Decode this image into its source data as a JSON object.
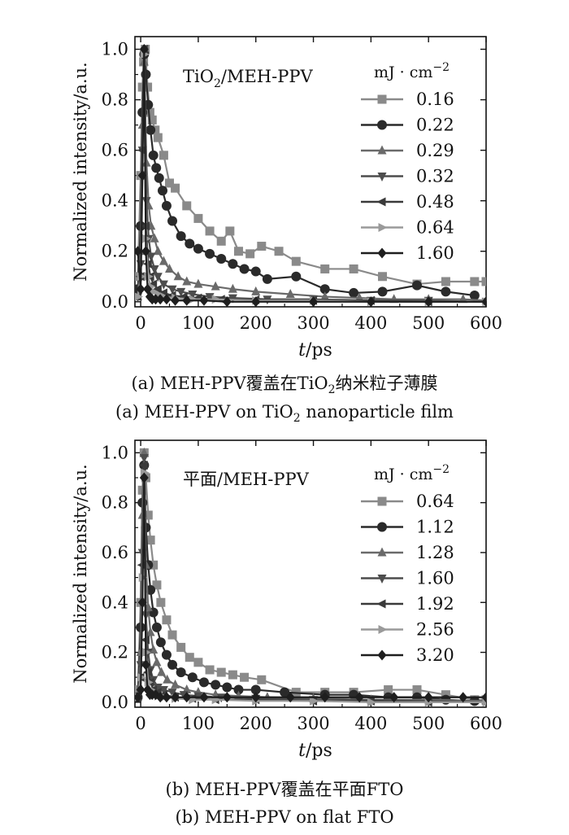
{
  "chart_data": [
    {
      "type": "line",
      "title": "TiO₂/MEH-PPV",
      "title_main": "TiO",
      "title_sub": "2",
      "title_rest": "/MEH-PPV",
      "xlabel_italic": "t",
      "xlabel_rest": "/ps",
      "ylabel": "Normalized intensity/a.u.",
      "xlim": [
        -10,
        600
      ],
      "ylim": [
        -0.02,
        1.05
      ],
      "xticks": [
        0,
        100,
        200,
        300,
        400,
        500,
        600
      ],
      "yticks": [
        0.0,
        0.2,
        0.4,
        0.6,
        0.8,
        1.0
      ],
      "xtick_labels": [
        "0",
        "100",
        "200",
        "300",
        "400",
        "500",
        "600"
      ],
      "ytick_labels": [
        "0.0",
        "0.2",
        "0.4",
        "0.6",
        "0.8",
        "1.0"
      ],
      "legend_title": "mJ · cm",
      "legend_title_sup": "−2",
      "legend_position": "top-right",
      "caption_cn_pre": "(a) MEH-PPV覆盖在TiO",
      "caption_cn_sub": "2",
      "caption_cn_post": "纳米粒子薄膜",
      "caption_en_pre": "(a) MEH-PPV on TiO",
      "caption_en_sub": "2",
      "caption_en_post": " nanoparticle film",
      "series": [
        {
          "name": "0.16",
          "marker": "square",
          "color": "#8a8a8a",
          "x": [
            -5,
            0,
            3,
            5,
            8,
            12,
            16,
            20,
            25,
            30,
            40,
            50,
            60,
            80,
            100,
            120,
            140,
            155,
            170,
            190,
            210,
            240,
            270,
            320,
            370,
            420,
            480,
            530,
            580,
            600
          ],
          "y": [
            0.1,
            0.5,
            0.85,
            0.95,
            1.0,
            0.85,
            0.75,
            0.72,
            0.68,
            0.65,
            0.58,
            0.47,
            0.45,
            0.38,
            0.33,
            0.28,
            0.24,
            0.28,
            0.2,
            0.19,
            0.22,
            0.2,
            0.16,
            0.13,
            0.13,
            0.1,
            0.07,
            0.08,
            0.08,
            0.08
          ]
        },
        {
          "name": "0.22",
          "marker": "circle",
          "color": "#2a2a2a",
          "x": [
            -5,
            0,
            3,
            6,
            9,
            13,
            17,
            22,
            27,
            32,
            38,
            45,
            55,
            70,
            85,
            100,
            120,
            140,
            160,
            180,
            200,
            220,
            270,
            320,
            370,
            420,
            480,
            530,
            580
          ],
          "y": [
            0.05,
            0.3,
            0.75,
            0.98,
            0.9,
            0.78,
            0.68,
            0.58,
            0.53,
            0.49,
            0.44,
            0.38,
            0.32,
            0.26,
            0.23,
            0.21,
            0.19,
            0.17,
            0.15,
            0.13,
            0.12,
            0.09,
            0.1,
            0.05,
            0.035,
            0.04,
            0.065,
            0.04,
            0.025
          ]
        },
        {
          "name": "0.29",
          "marker": "triangle-up",
          "color": "#6a6a6a",
          "x": [
            -5,
            0,
            3,
            6,
            10,
            14,
            18,
            24,
            30,
            40,
            50,
            65,
            80,
            100,
            130,
            160,
            200,
            260,
            320,
            380,
            440,
            500,
            560,
            600
          ],
          "y": [
            0.02,
            0.2,
            0.7,
            0.95,
            0.55,
            0.38,
            0.3,
            0.25,
            0.2,
            0.16,
            0.13,
            0.1,
            0.08,
            0.07,
            0.06,
            0.05,
            0.04,
            0.03,
            0.02,
            0.015,
            0.01,
            0.01,
            0.01,
            0.005
          ]
        },
        {
          "name": "0.32",
          "marker": "triangle-down",
          "color": "#4d4d4d",
          "x": [
            -5,
            0,
            3,
            6,
            10,
            14,
            18,
            24,
            30,
            40,
            55,
            70,
            90,
            120,
            160,
            220,
            300,
            400,
            500,
            600
          ],
          "y": [
            0.02,
            0.15,
            0.6,
            0.98,
            0.4,
            0.25,
            0.18,
            0.13,
            0.1,
            0.07,
            0.05,
            0.04,
            0.03,
            0.02,
            0.015,
            0.01,
            0.01,
            0.005,
            0.005,
            0.0
          ]
        },
        {
          "name": "0.48",
          "marker": "triangle-left",
          "color": "#3a3a3a",
          "x": [
            -5,
            0,
            3,
            6,
            9,
            13,
            17,
            22,
            30,
            40,
            55,
            75,
            100,
            140,
            200,
            300,
            400,
            500,
            600
          ],
          "y": [
            0.02,
            0.1,
            0.6,
            1.0,
            0.3,
            0.15,
            0.1,
            0.07,
            0.05,
            0.035,
            0.025,
            0.02,
            0.015,
            0.01,
            0.008,
            0.005,
            0.005,
            0.0,
            0.0
          ]
        },
        {
          "name": "0.64",
          "marker": "triangle-right",
          "color": "#9a9a9a",
          "x": [
            -5,
            0,
            3,
            6,
            9,
            13,
            17,
            22,
            30,
            40,
            60,
            90,
            130,
            200,
            300,
            400,
            500,
            600
          ],
          "y": [
            0.02,
            0.1,
            0.5,
            0.98,
            0.25,
            0.1,
            0.06,
            0.04,
            0.03,
            0.02,
            0.015,
            0.01,
            0.01,
            0.005,
            0.005,
            0.0,
            0.0,
            0.0
          ]
        },
        {
          "name": "1.60",
          "marker": "diamond",
          "color": "#1e1e1e",
          "x": [
            -5,
            0,
            3,
            6,
            9,
            12,
            16,
            20,
            26,
            34,
            45,
            60,
            80,
            110,
            150,
            200,
            300,
            400,
            500,
            600
          ],
          "y": [
            0.2,
            0.05,
            0.5,
            1.0,
            0.2,
            0.05,
            0.02,
            0.01,
            0.01,
            0.01,
            0.01,
            0.005,
            0.005,
            0.005,
            0.0,
            0.0,
            0.0,
            0.0,
            0.0,
            0.0
          ]
        }
      ]
    },
    {
      "type": "line",
      "title": "平面/MEH-PPV",
      "xlabel_italic": "t",
      "xlabel_rest": "/ps",
      "ylabel": "Normalized intensity/a.u.",
      "xlim": [
        -10,
        600
      ],
      "ylim": [
        -0.02,
        1.05
      ],
      "xticks": [
        0,
        100,
        200,
        300,
        400,
        500,
        600
      ],
      "yticks": [
        0.0,
        0.2,
        0.4,
        0.6,
        0.8,
        1.0
      ],
      "xtick_labels": [
        "0",
        "100",
        "200",
        "300",
        "400",
        "500",
        "600"
      ],
      "ytick_labels": [
        "0.0",
        "0.2",
        "0.4",
        "0.6",
        "0.8",
        "1.0"
      ],
      "legend_title": "mJ · cm",
      "legend_title_sup": "−2",
      "legend_position": "top-right",
      "caption_cn": "(b) MEH-PPV覆盖在平面FTO",
      "caption_en": "(b) MEH-PPV on flat FTO",
      "series": [
        {
          "name": "0.64",
          "marker": "square",
          "color": "#8a8a8a",
          "x": [
            -5,
            0,
            3,
            6,
            9,
            13,
            17,
            22,
            28,
            35,
            45,
            55,
            70,
            85,
            100,
            120,
            140,
            160,
            180,
            210,
            270,
            320,
            370,
            430,
            480,
            530,
            580,
            600
          ],
          "y": [
            0.05,
            0.4,
            0.85,
            1.0,
            0.9,
            0.75,
            0.65,
            0.55,
            0.47,
            0.4,
            0.33,
            0.27,
            0.22,
            0.18,
            0.16,
            0.13,
            0.12,
            0.11,
            0.1,
            0.09,
            0.04,
            0.04,
            0.04,
            0.05,
            0.05,
            0.03,
            0.01,
            0.01
          ]
        },
        {
          "name": "1.12",
          "marker": "circle",
          "color": "#2a2a2a",
          "x": [
            -5,
            0,
            3,
            6,
            9,
            13,
            17,
            22,
            28,
            35,
            45,
            55,
            70,
            90,
            110,
            130,
            150,
            170,
            200,
            250,
            320,
            370,
            430,
            480,
            530,
            580
          ],
          "y": [
            0.02,
            0.3,
            0.8,
            0.95,
            0.7,
            0.55,
            0.45,
            0.36,
            0.3,
            0.24,
            0.19,
            0.15,
            0.12,
            0.1,
            0.08,
            0.07,
            0.06,
            0.05,
            0.05,
            0.04,
            0.03,
            0.03,
            0.02,
            0.02,
            0.01,
            0.005
          ]
        },
        {
          "name": "1.28",
          "marker": "triangle-up",
          "color": "#6a6a6a",
          "x": [
            -5,
            0,
            3,
            6,
            9,
            13,
            17,
            22,
            28,
            36,
            46,
            60,
            80,
            100,
            130,
            170,
            220,
            300,
            400,
            500,
            600
          ],
          "y": [
            0.02,
            0.2,
            0.75,
            1.0,
            0.55,
            0.38,
            0.28,
            0.21,
            0.16,
            0.12,
            0.09,
            0.07,
            0.05,
            0.04,
            0.03,
            0.025,
            0.02,
            0.015,
            0.01,
            0.01,
            0.005
          ]
        },
        {
          "name": "1.60",
          "marker": "triangle-down",
          "color": "#4d4d4d",
          "x": [
            -5,
            0,
            3,
            6,
            9,
            13,
            17,
            22,
            30,
            40,
            55,
            75,
            100,
            140,
            200,
            300,
            400,
            500,
            600
          ],
          "y": [
            0.02,
            0.15,
            0.6,
            0.98,
            0.35,
            0.2,
            0.13,
            0.09,
            0.06,
            0.05,
            0.04,
            0.03,
            0.025,
            0.02,
            0.015,
            0.01,
            0.01,
            0.005,
            0.0
          ]
        },
        {
          "name": "1.92",
          "marker": "triangle-left",
          "color": "#3a3a3a",
          "x": [
            -5,
            0,
            3,
            6,
            9,
            13,
            17,
            22,
            30,
            40,
            60,
            90,
            130,
            200,
            300,
            400,
            500,
            600
          ],
          "y": [
            0.02,
            0.1,
            0.55,
            0.95,
            0.25,
            0.12,
            0.08,
            0.05,
            0.04,
            0.03,
            0.02,
            0.015,
            0.01,
            0.01,
            0.005,
            0.005,
            0.0,
            0.0
          ]
        },
        {
          "name": "2.56",
          "marker": "triangle-right",
          "color": "#9a9a9a",
          "x": [
            -5,
            0,
            3,
            6,
            9,
            13,
            17,
            22,
            30,
            40,
            60,
            90,
            130,
            200,
            300,
            400,
            500,
            600
          ],
          "y": [
            0.02,
            0.1,
            0.5,
            0.92,
            0.2,
            0.08,
            0.05,
            0.035,
            0.025,
            0.02,
            0.015,
            0.01,
            0.01,
            0.005,
            0.005,
            0.0,
            0.0,
            0.0
          ]
        },
        {
          "name": "3.20",
          "marker": "diamond",
          "color": "#1e1e1e",
          "x": [
            -5,
            0,
            3,
            6,
            9,
            12,
            16,
            20,
            26,
            34,
            45,
            60,
            80,
            110,
            150,
            200,
            260,
            320,
            380,
            440,
            500,
            560,
            600
          ],
          "y": [
            0.02,
            0.05,
            0.4,
            0.9,
            0.15,
            0.05,
            0.03,
            0.03,
            0.03,
            0.02,
            0.02,
            0.02,
            0.02,
            0.02,
            0.02,
            0.02,
            0.02,
            0.02,
            0.02,
            0.02,
            0.02,
            0.02,
            0.02
          ]
        }
      ]
    }
  ]
}
